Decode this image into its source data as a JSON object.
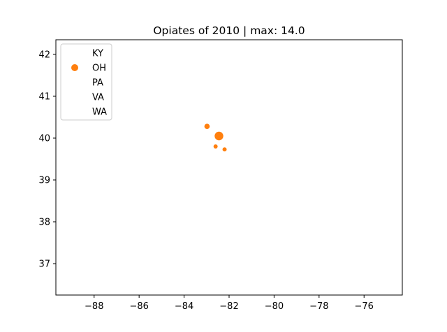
{
  "chart_data": {
    "type": "scatter",
    "title": "Opiates of 2010 | max: 14.0",
    "xlabel": "",
    "ylabel": "",
    "xlim": [
      -89.7,
      -74.3
    ],
    "ylim": [
      36.25,
      42.35
    ],
    "x_ticks": [
      -88,
      -86,
      -84,
      -82,
      -80,
      -78,
      -76
    ],
    "x_tick_labels": [
      "−88",
      "−86",
      "−84",
      "−82",
      "−80",
      "−78",
      "−76"
    ],
    "y_ticks": [
      37,
      38,
      39,
      40,
      41,
      42
    ],
    "y_tick_labels": [
      "37",
      "38",
      "39",
      "40",
      "41",
      "42"
    ],
    "grid": false,
    "legend_position": "top-left",
    "series": [
      {
        "name": "KY",
        "color": "#1f77b4",
        "points": []
      },
      {
        "name": "OH",
        "color": "#ff7f0e",
        "points": [
          {
            "x": -82.45,
            "y": 40.05,
            "value": 14.0
          },
          {
            "x": -82.98,
            "y": 40.28,
            "value": 3.0
          },
          {
            "x": -82.6,
            "y": 39.8,
            "value": 1.0
          },
          {
            "x": -82.2,
            "y": 39.73,
            "value": 1.0
          }
        ]
      },
      {
        "name": "PA",
        "color": "#2ca02c",
        "points": []
      },
      {
        "name": "VA",
        "color": "#d62728",
        "points": []
      },
      {
        "name": "WA",
        "color": "#9467bd",
        "points": []
      }
    ]
  }
}
